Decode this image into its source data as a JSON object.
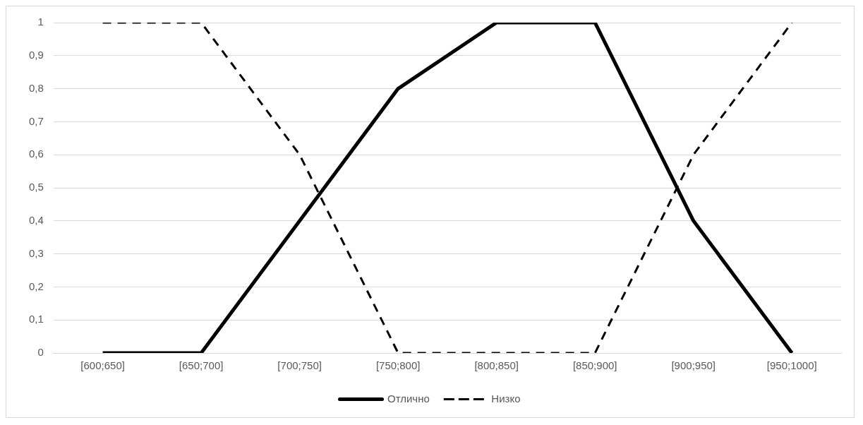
{
  "chart_data": {
    "type": "line",
    "categories": [
      "[600;650]",
      "[650;700]",
      "[700;750]",
      "[750;800]",
      "[800;850]",
      "[850;900]",
      "[900;950]",
      "[950;1000]"
    ],
    "series": [
      {
        "name": "Отлично",
        "color": "#000000",
        "line_style": "solid",
        "values": [
          0,
          0,
          0.4,
          0.8,
          1,
          1,
          0.4,
          0
        ]
      },
      {
        "name": "Низко",
        "color": "#000000",
        "line_style": "dashed",
        "values": [
          1,
          1,
          0.6,
          0,
          0,
          0,
          0.6,
          1
        ]
      }
    ],
    "ylim": [
      0,
      1
    ],
    "yticks": [
      {
        "value": 0,
        "label": "0"
      },
      {
        "value": 0.1,
        "label": "0,1"
      },
      {
        "value": 0.2,
        "label": "0,2"
      },
      {
        "value": 0.3,
        "label": "0,3"
      },
      {
        "value": 0.4,
        "label": "0,4"
      },
      {
        "value": 0.5,
        "label": "0,5"
      },
      {
        "value": 0.6,
        "label": "0,6"
      },
      {
        "value": 0.7,
        "label": "0,7"
      },
      {
        "value": 0.8,
        "label": "0,8"
      },
      {
        "value": 0.9,
        "label": "0,9"
      },
      {
        "value": 1,
        "label": "1"
      }
    ],
    "grid": "y",
    "legend": "bottom",
    "marker": "none"
  }
}
